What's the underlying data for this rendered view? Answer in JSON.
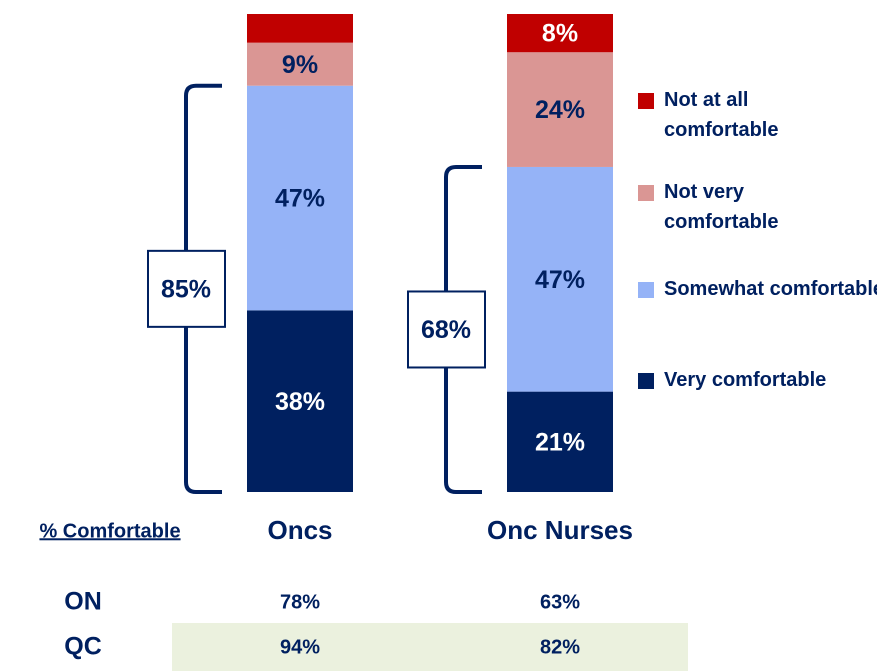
{
  "chart_data": {
    "type": "stacked_bar",
    "categories": [
      "Oncs",
      "Onc Nurses"
    ],
    "ylim": [
      0,
      100
    ],
    "series": [
      {
        "name": "Very comfortable",
        "color": "#002060",
        "values": [
          38,
          21
        ],
        "value_labels": [
          "38%",
          "21%"
        ]
      },
      {
        "name": "Somewhat comfortable",
        "color": "#95b3f7",
        "values": [
          47,
          47
        ],
        "value_labels": [
          "47%",
          "47%"
        ]
      },
      {
        "name": "Not very comfortable",
        "color": "#da9694",
        "values": [
          9,
          24
        ],
        "value_labels": [
          "9%",
          "24%"
        ]
      },
      {
        "name": "Not at all comfortable",
        "color": "#c00000",
        "values": [
          6,
          8
        ],
        "value_labels": [
          null,
          "8%"
        ]
      }
    ],
    "brackets": {
      "values": [
        85,
        68
      ],
      "labels": [
        "85%",
        "68%"
      ]
    }
  },
  "table": {
    "header": "% Comfortable",
    "rows": [
      [
        "ON",
        "78%",
        "63%"
      ],
      [
        "QC",
        "94%",
        "82%"
      ]
    ]
  }
}
